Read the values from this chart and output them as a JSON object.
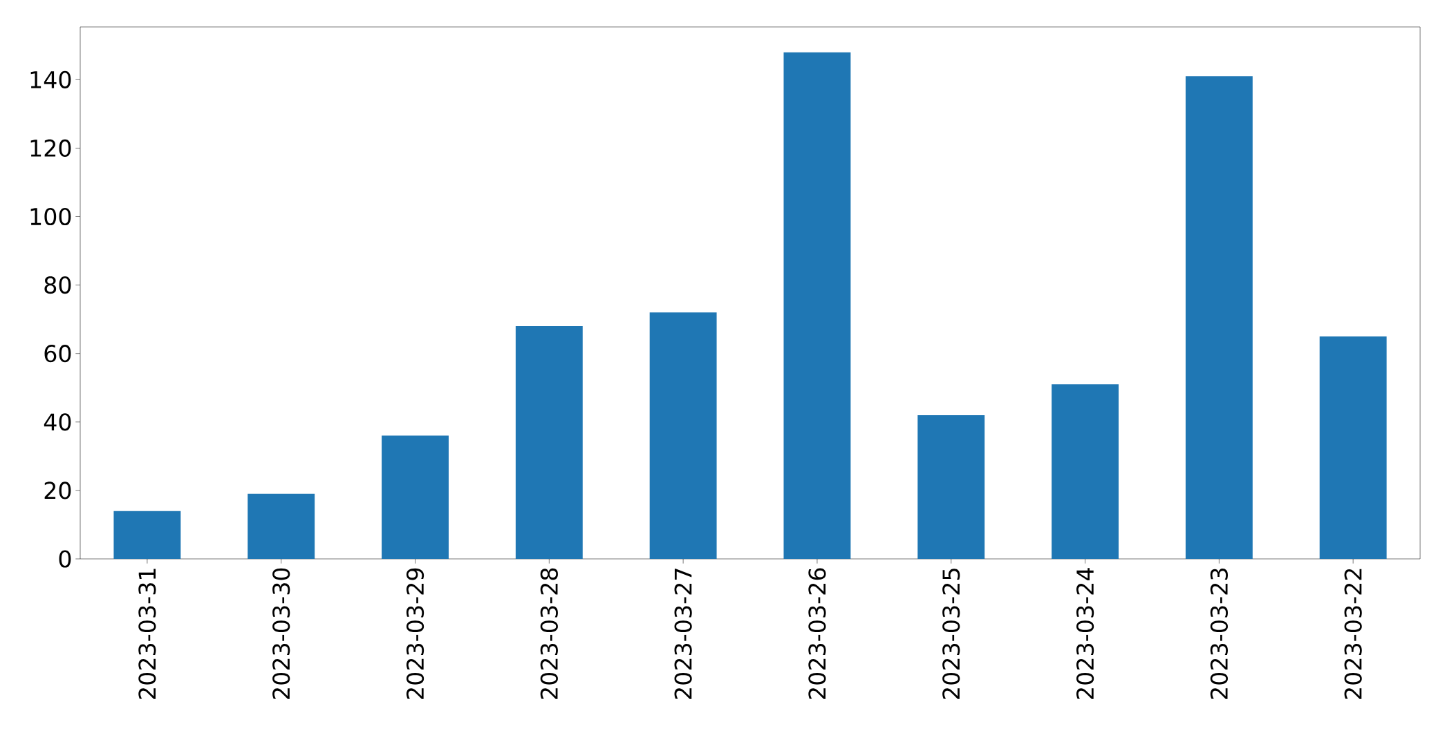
{
  "chart_data": {
    "type": "bar",
    "categories": [
      "2023-03-31",
      "2023-03-30",
      "2023-03-29",
      "2023-03-28",
      "2023-03-27",
      "2023-03-26",
      "2023-03-25",
      "2023-03-24",
      "2023-03-23",
      "2023-03-22"
    ],
    "values": [
      14,
      19,
      36,
      68,
      72,
      148,
      42,
      51,
      141,
      65
    ],
    "color": "#1f77b4",
    "ylim": [
      0,
      155.4
    ],
    "yticks": [
      0,
      20,
      40,
      60,
      80,
      100,
      120,
      140
    ],
    "grid": false
  }
}
